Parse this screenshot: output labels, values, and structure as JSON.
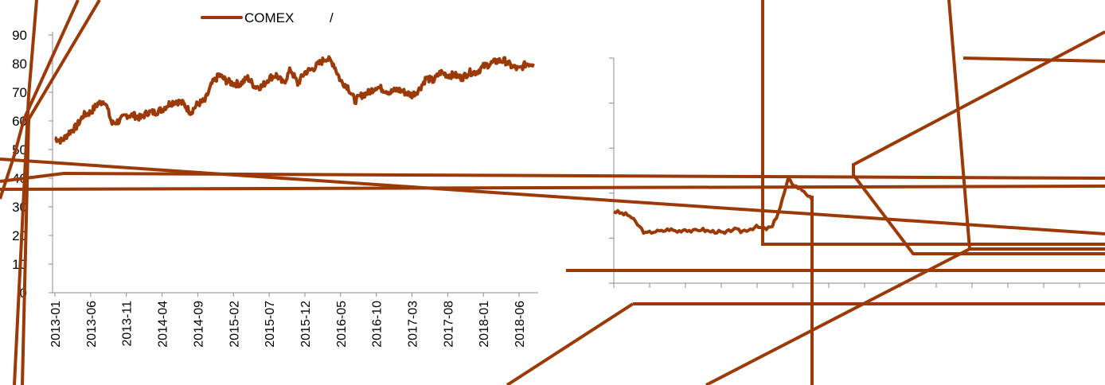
{
  "colors": {
    "series": "#9b3a06",
    "axis": "#8c8c8c"
  },
  "legend": {
    "label": "COMEX",
    "separator": "/"
  },
  "chart_data": [
    {
      "type": "line",
      "title": "",
      "xlabel": "",
      "ylabel": "",
      "ylim": [
        0,
        90
      ],
      "y_ticks": [
        "0",
        "10",
        "20",
        "30",
        "40",
        "50",
        "60",
        "70",
        "80",
        "90"
      ],
      "x_ticks": [
        "2013-01",
        "2013-06",
        "2013-11",
        "2014-04",
        "2014-09",
        "2015-02",
        "2015-07",
        "2015-12",
        "2016-05",
        "2016-10",
        "2017-03",
        "2017-08",
        "2018-01",
        "2018-06"
      ],
      "grid": false,
      "legend_position": "top-center",
      "series": [
        {
          "name": "COMEX",
          "points": [
            [
              "2013-01",
              54
            ],
            [
              "2013-02",
              53
            ],
            [
              "2013-03",
              56
            ],
            [
              "2013-04",
              58
            ],
            [
              "2013-05",
              62
            ],
            [
              "2013-06",
              63
            ],
            [
              "2013-07",
              66
            ],
            [
              "2013-08",
              67
            ],
            [
              "2013-09",
              59
            ],
            [
              "2013-10",
              60
            ],
            [
              "2013-11",
              62
            ],
            [
              "2013-12",
              62
            ],
            [
              "2014-01",
              61
            ],
            [
              "2014-02",
              63
            ],
            [
              "2014-03",
              63
            ],
            [
              "2014-04",
              64
            ],
            [
              "2014-05",
              66
            ],
            [
              "2014-06",
              67
            ],
            [
              "2014-07",
              66
            ],
            [
              "2014-08",
              63
            ],
            [
              "2014-09",
              66
            ],
            [
              "2014-10",
              67
            ],
            [
              "2014-11",
              73
            ],
            [
              "2014-12",
              76
            ],
            [
              "2015-01",
              74
            ],
            [
              "2015-02",
              73
            ],
            [
              "2015-03",
              73
            ],
            [
              "2015-04",
              75
            ],
            [
              "2015-05",
              72
            ],
            [
              "2015-06",
              72
            ],
            [
              "2015-07",
              75
            ],
            [
              "2015-08",
              76
            ],
            [
              "2015-09",
              73
            ],
            [
              "2015-10",
              78
            ],
            [
              "2015-11",
              73
            ],
            [
              "2015-12",
              77
            ],
            [
              "2016-01",
              78
            ],
            [
              "2016-02",
              80
            ],
            [
              "2016-03",
              82
            ],
            [
              "2016-04",
              80
            ],
            [
              "2016-05",
              74
            ],
            [
              "2016-06",
              72
            ],
            [
              "2016-07",
              67
            ],
            [
              "2016-08",
              69
            ],
            [
              "2016-09",
              70
            ],
            [
              "2016-10",
              72
            ],
            [
              "2016-11",
              71
            ],
            [
              "2016-12",
              70
            ],
            [
              "2017-01",
              71
            ],
            [
              "2017-02",
              70
            ],
            [
              "2017-03",
              69
            ],
            [
              "2017-04",
              71
            ],
            [
              "2017-05",
              75
            ],
            [
              "2017-06",
              74
            ],
            [
              "2017-07",
              77
            ],
            [
              "2017-08",
              76
            ],
            [
              "2017-09",
              76
            ],
            [
              "2017-10",
              75
            ],
            [
              "2017-11",
              77
            ],
            [
              "2017-12",
              77
            ],
            [
              "2018-01",
              79
            ],
            [
              "2018-02",
              80
            ],
            [
              "2018-03",
              81
            ],
            [
              "2018-04",
              81
            ],
            [
              "2018-05",
              79
            ],
            [
              "2018-06",
              78
            ],
            [
              "2018-07",
              80
            ],
            [
              "2018-08",
              80
            ]
          ]
        }
      ]
    },
    {
      "type": "line",
      "title": "",
      "xlabel": "",
      "ylabel": "",
      "x_ticks": [],
      "y_ticks": [],
      "grid": false,
      "series": [
        {
          "name": "",
          "values": [
            32,
            31,
            30,
            26,
            22,
            23,
            23,
            24,
            23,
            24,
            23,
            24,
            23,
            23,
            22,
            24,
            23,
            24,
            25,
            24,
            25,
            34,
            46,
            43,
            41,
            37
          ]
        }
      ]
    }
  ]
}
